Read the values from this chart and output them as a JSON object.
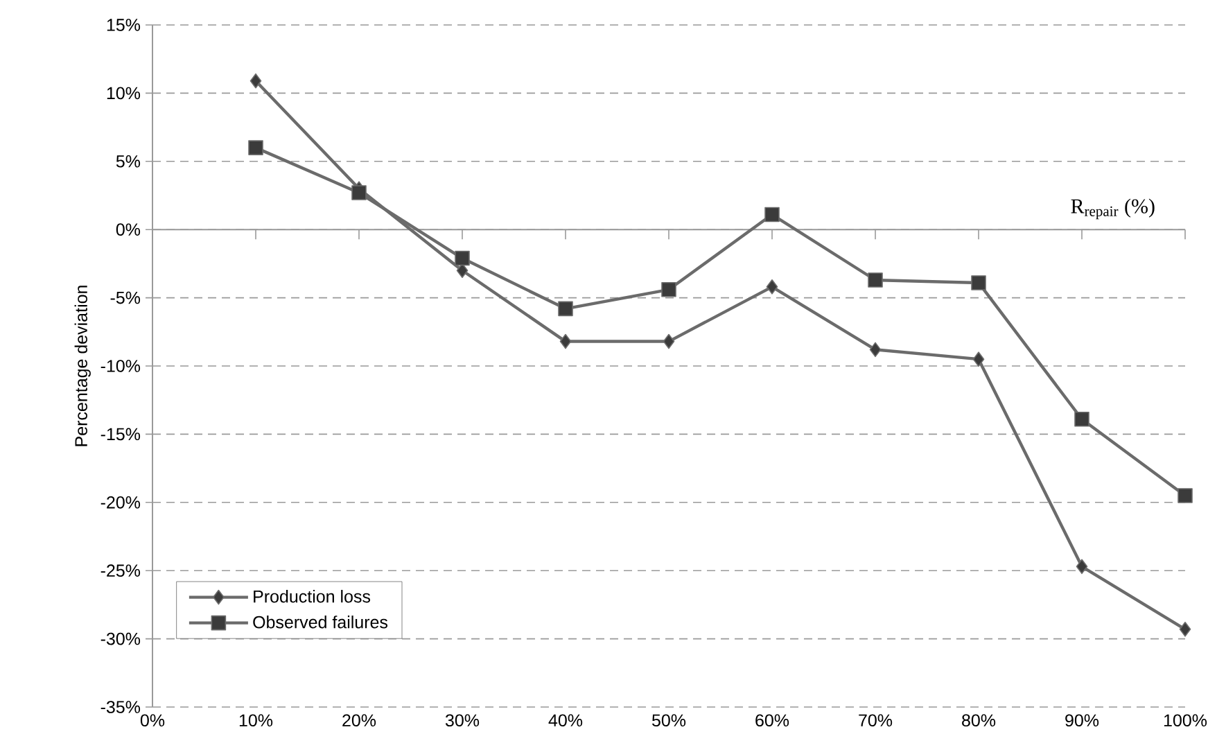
{
  "chart_data": {
    "type": "line",
    "xlabel": "R$_{repair}$ (%)",
    "ylabel": "Percentage deviation",
    "x": [
      10,
      20,
      30,
      40,
      50,
      60,
      70,
      80,
      90,
      100
    ],
    "series": [
      {
        "name": "Production loss",
        "color": "#6b6b6b",
        "marker": "diamond",
        "values": [
          10.9,
          3.0,
          -3.0,
          -8.2,
          -8.2,
          -4.2,
          -8.8,
          -9.5,
          -24.7,
          -29.3
        ]
      },
      {
        "name": "Observed failures",
        "color": "#6b6b6b",
        "marker": "square",
        "values": [
          6.0,
          2.7,
          -2.1,
          -5.8,
          -4.4,
          1.1,
          -3.7,
          -3.9,
          -13.9,
          -19.5
        ]
      }
    ],
    "xlim": [
      0,
      100
    ],
    "xticks": [
      {
        "value": 0,
        "label": "0%"
      },
      {
        "value": 10,
        "label": "10%"
      },
      {
        "value": 20,
        "label": "20%"
      },
      {
        "value": 30,
        "label": "30%"
      },
      {
        "value": 40,
        "label": "40%"
      },
      {
        "value": 50,
        "label": "50%"
      },
      {
        "value": 60,
        "label": "60%"
      },
      {
        "value": 70,
        "label": "70%"
      },
      {
        "value": 80,
        "label": "80%"
      },
      {
        "value": 90,
        "label": "90%"
      },
      {
        "value": 100,
        "label": "100%"
      }
    ],
    "ylim": [
      -35,
      15
    ],
    "yticks": [
      {
        "value": 15,
        "label": "15%"
      },
      {
        "value": 10,
        "label": "10%"
      },
      {
        "value": 5,
        "label": "5%"
      },
      {
        "value": 0,
        "label": "0%"
      },
      {
        "value": -5,
        "label": "-5%"
      },
      {
        "value": -10,
        "label": "-10%"
      },
      {
        "value": -15,
        "label": "-15%"
      },
      {
        "value": -20,
        "label": "-20%"
      },
      {
        "value": -25,
        "label": "-25%"
      },
      {
        "value": -30,
        "label": "-30%"
      },
      {
        "value": -35,
        "label": "-35%"
      }
    ],
    "grid": "y",
    "line_style": "solid",
    "legend": "bottom left"
  }
}
